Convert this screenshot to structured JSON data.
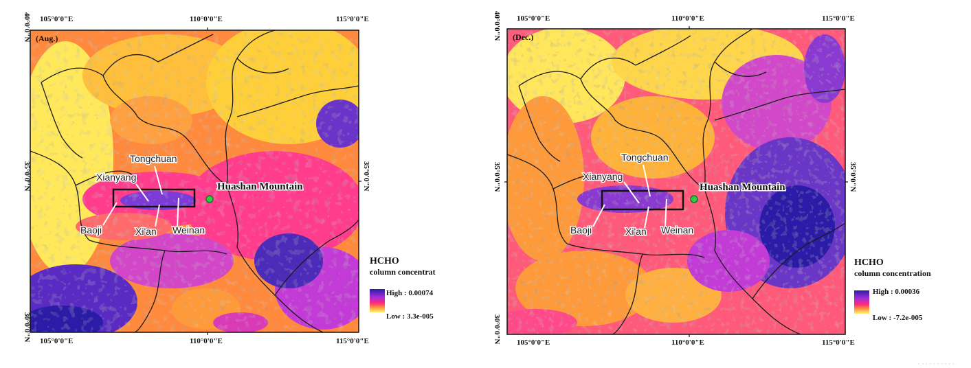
{
  "panels": [
    {
      "id": "aug",
      "month_label": "(Aug.)",
      "lon_ticks": [
        "105°0'0\"E",
        "110°0'0\"E",
        "115°0'0\"E"
      ],
      "lat_ticks": [
        "40°0'0\"N",
        "35°0'0\"N",
        "30°0'0\"N"
      ],
      "cities": {
        "tongchuan": "Tongchuan",
        "xianyang": "Xianyang",
        "baoji": "Baoji",
        "xian": "Xi'an",
        "weinan": "Weinan"
      },
      "poi_label": "Huashan Mountain",
      "legend": {
        "title": "HCHO",
        "subtitle": "column concentrat",
        "high": "High : 0.00074",
        "low": "Low : 3.3e-005"
      }
    },
    {
      "id": "dec",
      "month_label": "(Dec.)",
      "lon_ticks": [
        "105°0'0\"E",
        "110°0'0\"E",
        "115°0'0\"E"
      ],
      "lat_ticks": [
        "40°0'0\"N",
        "35°0'0\"N",
        "30°0'0\"N"
      ],
      "cities": {
        "tongchuan": "Tongchuan",
        "xianyang": "Xianyang",
        "baoji": "Baoji",
        "xian": "Xi'an",
        "weinan": "Weinan"
      },
      "poi_label": "Huashan Mountain",
      "legend": {
        "title": "HCHO",
        "subtitle": "column concentration",
        "high": "High : 0.00036",
        "low": "Low : -7.2e-005"
      }
    }
  ],
  "colors": {
    "high": "#2b1ca8",
    "mid_high": "#a72cd8",
    "mid": "#ff2a7a",
    "mid_low": "#ff9a3a",
    "low": "#fff27a",
    "poi_marker": "#2ecc40"
  }
}
